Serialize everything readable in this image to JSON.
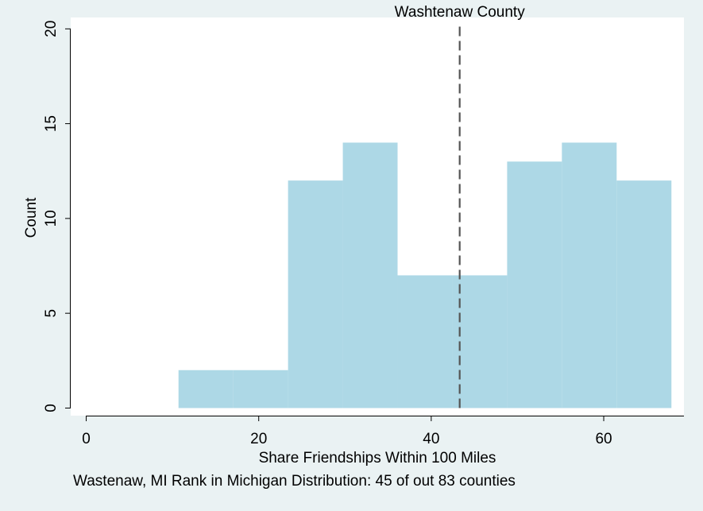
{
  "chart_data": {
    "type": "bar",
    "subtype": "histogram",
    "xlabel": "Share Friendships Within 100 Miles",
    "ylabel": "Count",
    "note": "Wastenaw, MI Rank in Michigan Distribution: 45 of out 83 counties",
    "xlim": [
      -1.8,
      69.3
    ],
    "ylim": [
      -0.4,
      20.6
    ],
    "x_ticks": [
      0,
      20,
      40,
      60
    ],
    "y_ticks": [
      0,
      5,
      10,
      15,
      20
    ],
    "bins": [
      {
        "start": 10.7,
        "end": 17.05,
        "count": 2
      },
      {
        "start": 17.05,
        "end": 23.4,
        "count": 2
      },
      {
        "start": 23.4,
        "end": 29.75,
        "count": 12
      },
      {
        "start": 29.75,
        "end": 36.1,
        "count": 14
      },
      {
        "start": 36.1,
        "end": 42.45,
        "count": 7
      },
      {
        "start": 42.45,
        "end": 48.8,
        "count": 7
      },
      {
        "start": 48.8,
        "end": 55.15,
        "count": 13
      },
      {
        "start": 55.15,
        "end": 61.5,
        "count": 14
      },
      {
        "start": 61.5,
        "end": 67.85,
        "count": 12
      }
    ],
    "reference_line": {
      "x": 43.3,
      "label": "Washtenaw County",
      "style": "dashed"
    },
    "grid": false,
    "bar_color": "#add8e6",
    "line_color": "#555555",
    "plot_background": "#ffffff",
    "figure_background": "#eaf2f3"
  }
}
